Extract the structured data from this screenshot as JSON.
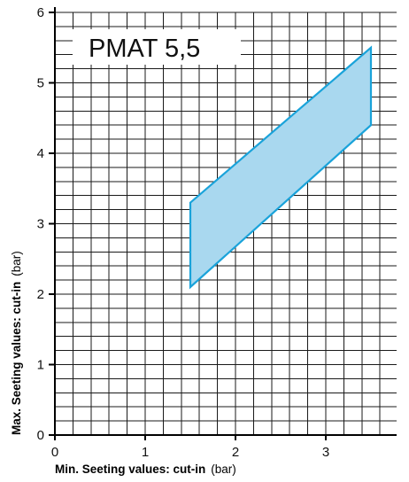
{
  "chart_data": {
    "type": "area",
    "title": "PMAT 5,5",
    "xlabel": "Min. Seeting values: cut-in",
    "xlabel_unit": "(bar)",
    "ylabel": "Max. Seeting values: cut-in",
    "ylabel_unit": "(bar)",
    "xlim": [
      0,
      3.9
    ],
    "ylim": [
      0,
      6
    ],
    "x_ticks": [
      0,
      1,
      2,
      3
    ],
    "y_ticks": [
      0,
      1,
      2,
      3,
      4,
      5,
      6
    ],
    "x_minor_step": 0.2,
    "y_minor_step": 0.2,
    "grid": true,
    "region": {
      "points": [
        {
          "x": 1.5,
          "y": 2.1
        },
        {
          "x": 1.5,
          "y": 3.3
        },
        {
          "x": 3.5,
          "y": 5.5
        },
        {
          "x": 3.5,
          "y": 4.4
        }
      ],
      "fill_color": "#a9d8ef",
      "stroke_color": "#1aa3da"
    }
  }
}
